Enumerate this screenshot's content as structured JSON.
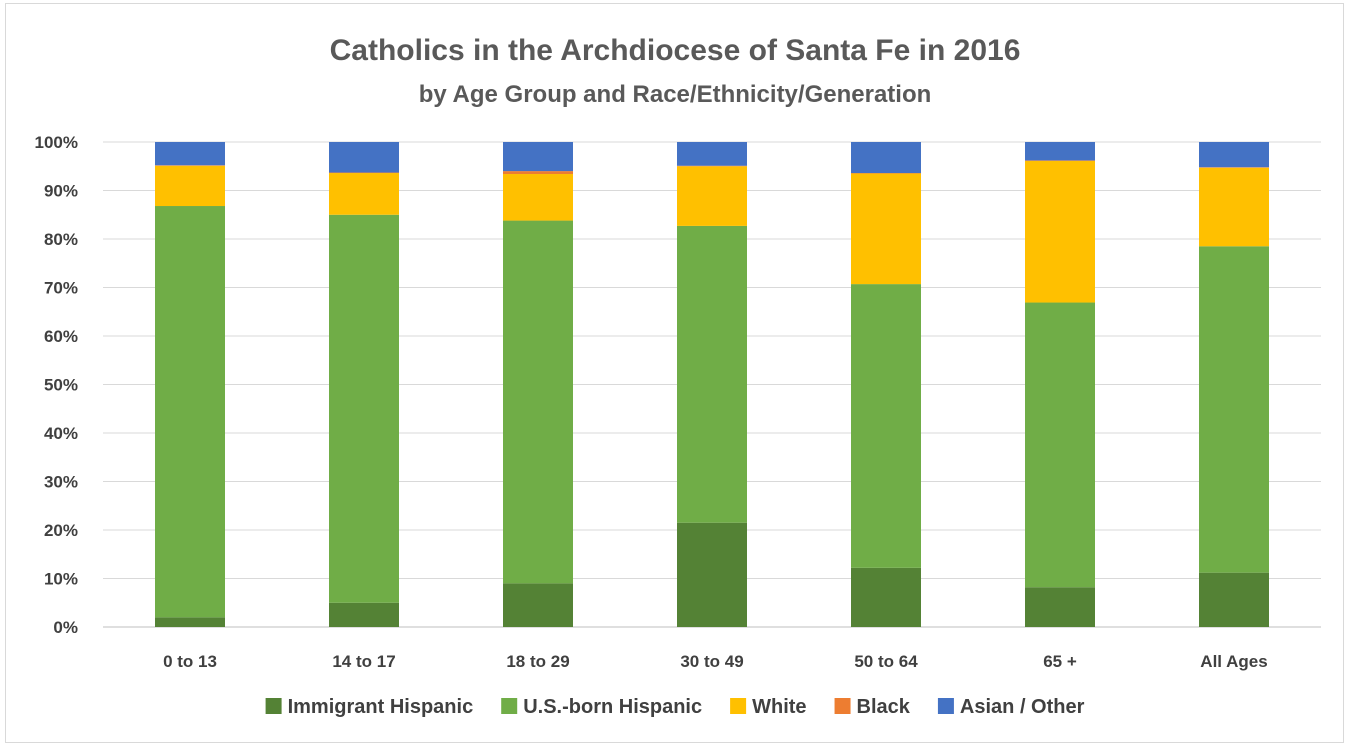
{
  "chart_data": {
    "type": "bar",
    "stacked": true,
    "title": "Catholics in the Archdiocese of Santa Fe in 2016",
    "subtitle": "by Age Group and Race/Ethnicity/Generation",
    "xlabel": "",
    "ylabel": "",
    "ylim": [
      0,
      100
    ],
    "y_ticks": [
      "0%",
      "10%",
      "20%",
      "30%",
      "40%",
      "50%",
      "60%",
      "70%",
      "80%",
      "90%",
      "100%"
    ],
    "categories": [
      "0 to 13",
      "14 to 17",
      "18 to 29",
      "30 to 49",
      "50 to 64",
      "65 +",
      "All Ages"
    ],
    "series": [
      {
        "name": "Immigrant Hispanic",
        "color": "#548235",
        "values": [
          2,
          5,
          9,
          21.5,
          12.2,
          8.2,
          11.2
        ]
      },
      {
        "name": "U.S.-born Hispanic",
        "color": "#70ad47",
        "values": [
          84.8,
          80,
          74.8,
          61.2,
          58.5,
          58.7,
          67.3
        ]
      },
      {
        "name": "White",
        "color": "#ffc000",
        "values": [
          8.3,
          8.6,
          9.6,
          12.3,
          22.8,
          29.2,
          16.2
        ]
      },
      {
        "name": "Black",
        "color": "#ed7d31",
        "values": [
          0.1,
          0.1,
          0.6,
          0.1,
          0.1,
          0.1,
          0.1
        ]
      },
      {
        "name": "Asian / Other",
        "color": "#4472c4",
        "values": [
          4.8,
          6.3,
          6,
          4.9,
          6.4,
          3.8,
          5.2
        ]
      }
    ],
    "grid": true,
    "legend_position": "bottom"
  }
}
